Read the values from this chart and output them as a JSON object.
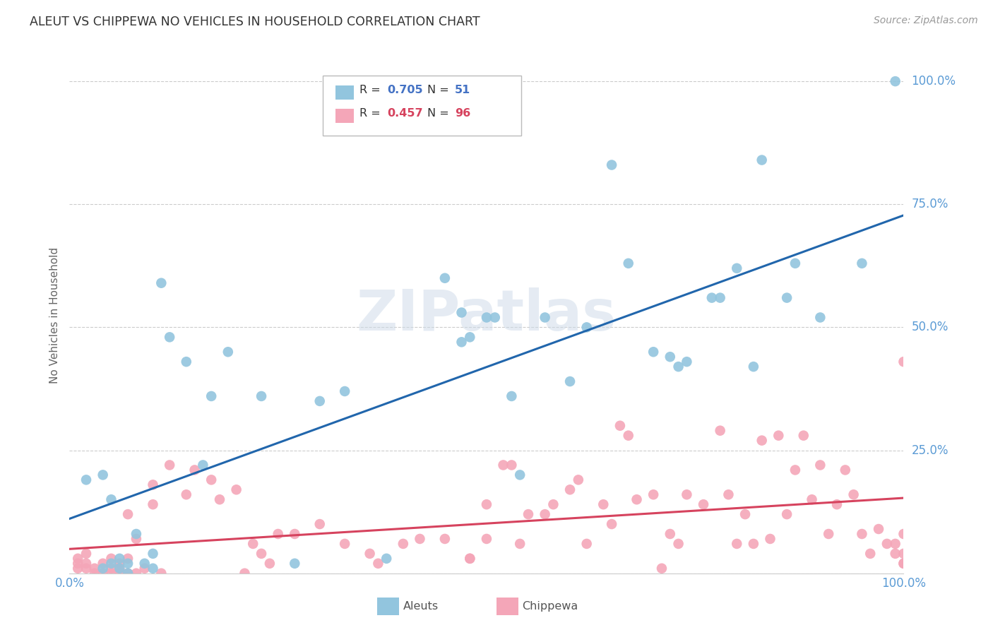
{
  "title": "ALEUT VS CHIPPEWA NO VEHICLES IN HOUSEHOLD CORRELATION CHART",
  "source": "Source: ZipAtlas.com",
  "ylabel": "No Vehicles in Household",
  "xlim": [
    0.0,
    1.0
  ],
  "ylim": [
    0.0,
    1.05
  ],
  "aleuts_R": 0.705,
  "aleuts_N": 51,
  "chippewa_R": 0.457,
  "chippewa_N": 96,
  "aleut_color": "#92c5de",
  "chippewa_color": "#f4a6b8",
  "aleut_line_color": "#2166ac",
  "chippewa_line_color": "#d6435e",
  "background_color": "#ffffff",
  "grid_color": "#cccccc",
  "watermark": "ZIPatlas",
  "tick_label_color": "#5b9bd5",
  "legend_R_color_aleut": "#4472c4",
  "legend_R_color_chippewa": "#d6435e",
  "aleuts_x": [
    0.02,
    0.04,
    0.05,
    0.05,
    0.06,
    0.06,
    0.07,
    0.08,
    0.09,
    0.1,
    0.1,
    0.11,
    0.12,
    0.14,
    0.16,
    0.17,
    0.19,
    0.23,
    0.27,
    0.3,
    0.33,
    0.38,
    0.45,
    0.47,
    0.47,
    0.48,
    0.5,
    0.51,
    0.53,
    0.54,
    0.57,
    0.6,
    0.62,
    0.65,
    0.67,
    0.7,
    0.72,
    0.73,
    0.74,
    0.77,
    0.78,
    0.8,
    0.82,
    0.83,
    0.86,
    0.87,
    0.9,
    0.95,
    0.99,
    0.04,
    0.07
  ],
  "aleuts_y": [
    0.19,
    0.2,
    0.02,
    0.15,
    0.01,
    0.03,
    0.0,
    0.08,
    0.02,
    0.01,
    0.04,
    0.59,
    0.48,
    0.43,
    0.22,
    0.36,
    0.45,
    0.36,
    0.02,
    0.35,
    0.37,
    0.03,
    0.6,
    0.53,
    0.47,
    0.48,
    0.52,
    0.52,
    0.36,
    0.2,
    0.52,
    0.39,
    0.5,
    0.83,
    0.63,
    0.45,
    0.44,
    0.42,
    0.43,
    0.56,
    0.56,
    0.62,
    0.42,
    0.84,
    0.56,
    0.63,
    0.52,
    0.63,
    1.0,
    0.01,
    0.02
  ],
  "chippewa_x": [
    0.01,
    0.01,
    0.01,
    0.02,
    0.02,
    0.02,
    0.03,
    0.03,
    0.04,
    0.04,
    0.05,
    0.05,
    0.05,
    0.06,
    0.06,
    0.06,
    0.07,
    0.07,
    0.07,
    0.08,
    0.08,
    0.09,
    0.1,
    0.1,
    0.11,
    0.12,
    0.14,
    0.15,
    0.17,
    0.18,
    0.2,
    0.21,
    0.22,
    0.23,
    0.24,
    0.25,
    0.27,
    0.3,
    0.33,
    0.36,
    0.37,
    0.4,
    0.42,
    0.45,
    0.48,
    0.48,
    0.5,
    0.5,
    0.52,
    0.53,
    0.54,
    0.55,
    0.57,
    0.58,
    0.6,
    0.61,
    0.62,
    0.64,
    0.65,
    0.66,
    0.67,
    0.68,
    0.7,
    0.71,
    0.72,
    0.73,
    0.74,
    0.76,
    0.78,
    0.79,
    0.8,
    0.81,
    0.82,
    0.83,
    0.84,
    0.85,
    0.86,
    0.87,
    0.88,
    0.89,
    0.9,
    0.91,
    0.92,
    0.93,
    0.94,
    0.95,
    0.96,
    0.97,
    0.98,
    0.99,
    0.99,
    1.0,
    1.0,
    1.0,
    1.0,
    1.0
  ],
  "chippewa_y": [
    0.02,
    0.03,
    0.01,
    0.04,
    0.02,
    0.01,
    0.0,
    0.01,
    0.02,
    0.0,
    0.03,
    0.01,
    0.0,
    0.02,
    0.0,
    0.01,
    0.12,
    0.03,
    0.0,
    0.0,
    0.07,
    0.01,
    0.14,
    0.18,
    0.0,
    0.22,
    0.16,
    0.21,
    0.19,
    0.15,
    0.17,
    0.0,
    0.06,
    0.04,
    0.02,
    0.08,
    0.08,
    0.1,
    0.06,
    0.04,
    0.02,
    0.06,
    0.07,
    0.07,
    0.03,
    0.03,
    0.07,
    0.14,
    0.22,
    0.22,
    0.06,
    0.12,
    0.12,
    0.14,
    0.17,
    0.19,
    0.06,
    0.14,
    0.1,
    0.3,
    0.28,
    0.15,
    0.16,
    0.01,
    0.08,
    0.06,
    0.16,
    0.14,
    0.29,
    0.16,
    0.06,
    0.12,
    0.06,
    0.27,
    0.07,
    0.28,
    0.12,
    0.21,
    0.28,
    0.15,
    0.22,
    0.08,
    0.14,
    0.21,
    0.16,
    0.08,
    0.04,
    0.09,
    0.06,
    0.04,
    0.06,
    0.43,
    0.02,
    0.04,
    0.02,
    0.08
  ]
}
